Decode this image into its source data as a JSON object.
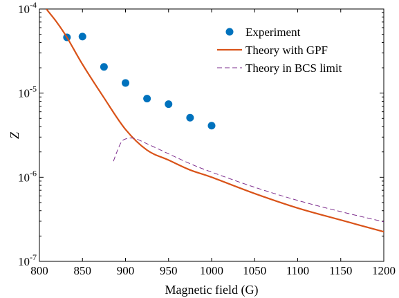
{
  "chart_data": {
    "type": "line",
    "xlabel": "Magnetic field (G)",
    "ylabel": "Z",
    "xlim": [
      800,
      1200
    ],
    "ylim": [
      1e-07,
      0.0001
    ],
    "yscale": "log",
    "grid": false,
    "legend_position": "top-right",
    "x_ticks": [
      800,
      850,
      900,
      950,
      1000,
      1050,
      1100,
      1150,
      1200
    ],
    "x_tick_labels": [
      "800",
      "850",
      "900",
      "950",
      "1000",
      "1050",
      "1100",
      "1150",
      "1200"
    ],
    "y_ticks": [
      1e-07,
      1e-06,
      1e-05,
      0.0001
    ],
    "y_tick_labels": [
      {
        "base": "10",
        "exp": "-7"
      },
      {
        "base": "10",
        "exp": "-6"
      },
      {
        "base": "10",
        "exp": "-5"
      },
      {
        "base": "10",
        "exp": "-4"
      }
    ],
    "series": [
      {
        "name": "Experiment",
        "style": "scatter",
        "color": "#0072BD",
        "x": [
          832,
          850,
          875,
          900,
          925,
          950,
          975,
          1000
        ],
        "y": [
          4.6e-05,
          4.7e-05,
          2.05e-05,
          1.32e-05,
          8.6e-06,
          7.4e-06,
          5.1e-06,
          4.1e-06
        ]
      },
      {
        "name": "Theory with GPF",
        "style": "line",
        "color": "#D95319",
        "x": [
          808,
          820,
          832,
          850,
          875,
          900,
          925,
          950,
          975,
          1000,
          1050,
          1100,
          1150,
          1200
        ],
        "y": [
          0.0001,
          7e-05,
          4.6e-05,
          2.2e-05,
          8.8e-06,
          3.7e-06,
          2.1e-06,
          1.6e-06,
          1.22e-06,
          1e-06,
          6.4e-07,
          4.3e-07,
          3.1e-07,
          2.25e-07
        ]
      },
      {
        "name": "Theory in BCS limit",
        "style": "dashed",
        "color": "#7E2F8E",
        "x": [
          886,
          890,
          895,
          900,
          910,
          925,
          950,
          975,
          1000,
          1050,
          1100,
          1150,
          1200
        ],
        "y": [
          1.55e-06,
          2e-06,
          2.6e-06,
          2.85e-06,
          2.9e-06,
          2.5e-06,
          1.9e-06,
          1.45e-06,
          1.15e-06,
          7.6e-07,
          5.3e-07,
          3.9e-07,
          2.95e-07
        ]
      }
    ]
  }
}
